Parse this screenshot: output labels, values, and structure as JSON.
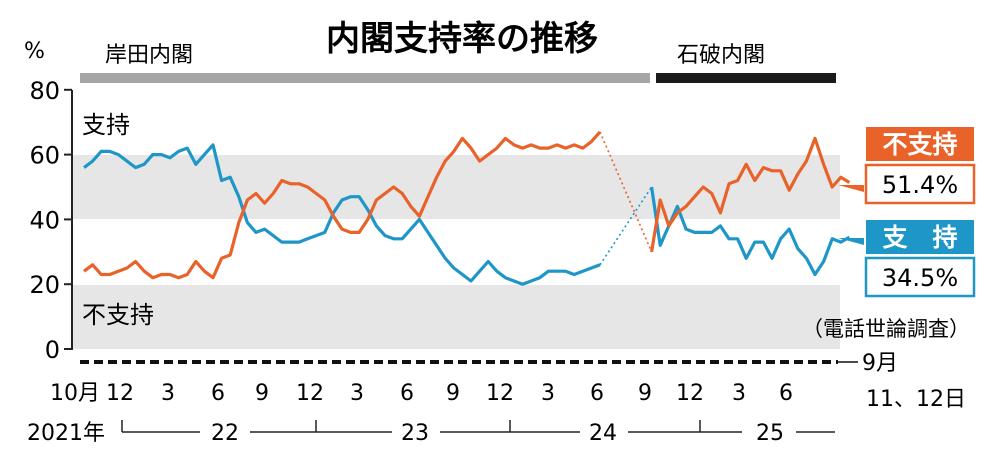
{
  "chart_data": {
    "type": "line",
    "title": "内閣支持率の推移",
    "y_unit": "%",
    "ylim": [
      0,
      80
    ],
    "y_ticks": [
      "0",
      "20",
      "40",
      "60",
      "80"
    ],
    "grid": "horizontal bands",
    "source_note": "（電話世論調査）",
    "cabinets": [
      {
        "name": "岸田内閣",
        "color": "#a6a6a6"
      },
      {
        "name": "石破内閣",
        "color": "#1a1a1a"
      }
    ],
    "x_month_labels": [
      "10月",
      "12",
      "3",
      "6",
      "9",
      "12",
      "3",
      "6",
      "9",
      "12",
      "3",
      "6",
      "9",
      "12",
      "3",
      "6"
    ],
    "x_year_labels": [
      "2021年",
      "22",
      "23",
      "24",
      "25"
    ],
    "last_point_label": {
      "line1": "9月",
      "line2": "11、12日"
    },
    "series": [
      {
        "name": "支持",
        "legend_name": "支　持",
        "inline_label": "支持",
        "color": "#1e96c8",
        "latest": "34.5%",
        "kishida": [
          [
            0,
            56
          ],
          [
            1,
            58
          ],
          [
            2,
            61
          ],
          [
            3,
            61
          ],
          [
            4,
            60
          ],
          [
            5,
            58
          ],
          [
            6,
            56
          ],
          [
            7,
            57
          ],
          [
            8,
            60
          ],
          [
            9,
            60
          ],
          [
            10,
            59
          ],
          [
            11,
            61
          ],
          [
            12,
            62
          ],
          [
            13,
            57
          ],
          [
            14,
            60
          ],
          [
            15,
            63
          ],
          [
            16,
            52
          ],
          [
            17,
            53
          ],
          [
            18,
            47
          ],
          [
            19,
            39
          ],
          [
            20,
            36
          ],
          [
            21,
            37
          ],
          [
            22,
            35
          ],
          [
            23,
            33
          ],
          [
            24,
            33
          ],
          [
            25,
            33
          ],
          [
            26,
            34
          ],
          [
            27,
            35
          ],
          [
            28,
            36
          ],
          [
            29,
            42
          ],
          [
            30,
            46
          ],
          [
            31,
            47
          ],
          [
            32,
            47
          ],
          [
            33,
            43
          ],
          [
            34,
            38
          ],
          [
            35,
            35
          ],
          [
            36,
            34
          ],
          [
            37,
            34
          ],
          [
            38,
            37
          ],
          [
            39,
            40
          ],
          [
            40,
            36
          ],
          [
            41,
            32
          ],
          [
            42,
            28
          ],
          [
            43,
            25
          ],
          [
            44,
            23
          ],
          [
            45,
            21
          ],
          [
            46,
            24
          ],
          [
            47,
            27
          ],
          [
            48,
            24
          ],
          [
            49,
            22
          ],
          [
            50,
            21
          ],
          [
            51,
            20
          ],
          [
            52,
            21
          ],
          [
            53,
            22
          ],
          [
            54,
            24
          ],
          [
            55,
            24
          ],
          [
            56,
            24
          ],
          [
            57,
            23
          ],
          [
            58,
            24
          ],
          [
            59,
            25
          ],
          [
            60,
            26
          ]
        ],
        "ishiba": [
          [
            66,
            50
          ],
          [
            67,
            32
          ],
          [
            68,
            38
          ],
          [
            69,
            44
          ],
          [
            70,
            37
          ],
          [
            71,
            36
          ],
          [
            72,
            36
          ],
          [
            73,
            36
          ],
          [
            74,
            38
          ],
          [
            75,
            34
          ],
          [
            76,
            34
          ],
          [
            77,
            28
          ],
          [
            78,
            33
          ],
          [
            79,
            33
          ],
          [
            80,
            28
          ],
          [
            81,
            34
          ],
          [
            82,
            37
          ],
          [
            83,
            31
          ],
          [
            84,
            28
          ],
          [
            85,
            23
          ],
          [
            86,
            27
          ],
          [
            87,
            34
          ],
          [
            88,
            33
          ],
          [
            89,
            34.5
          ]
        ]
      },
      {
        "name": "不支持",
        "legend_name": "不支持",
        "inline_label": "不支持",
        "color": "#e8622a",
        "latest": "51.4%",
        "kishida": [
          [
            0,
            24
          ],
          [
            1,
            26
          ],
          [
            2,
            23
          ],
          [
            3,
            23
          ],
          [
            4,
            24
          ],
          [
            5,
            25
          ],
          [
            6,
            27
          ],
          [
            7,
            24
          ],
          [
            8,
            22
          ],
          [
            9,
            23
          ],
          [
            10,
            23
          ],
          [
            11,
            22
          ],
          [
            12,
            23
          ],
          [
            13,
            27
          ],
          [
            14,
            24
          ],
          [
            15,
            22
          ],
          [
            16,
            28
          ],
          [
            17,
            29
          ],
          [
            18,
            39
          ],
          [
            19,
            46
          ],
          [
            20,
            48
          ],
          [
            21,
            45
          ],
          [
            22,
            48
          ],
          [
            23,
            52
          ],
          [
            24,
            51
          ],
          [
            25,
            51
          ],
          [
            26,
            50
          ],
          [
            27,
            48
          ],
          [
            28,
            46
          ],
          [
            29,
            41
          ],
          [
            30,
            37
          ],
          [
            31,
            36
          ],
          [
            32,
            36
          ],
          [
            33,
            40
          ],
          [
            34,
            46
          ],
          [
            35,
            48
          ],
          [
            36,
            50
          ],
          [
            37,
            48
          ],
          [
            38,
            44
          ],
          [
            39,
            41
          ],
          [
            40,
            47
          ],
          [
            41,
            53
          ],
          [
            42,
            58
          ],
          [
            43,
            61
          ],
          [
            44,
            65
          ],
          [
            45,
            62
          ],
          [
            46,
            58
          ],
          [
            47,
            60
          ],
          [
            48,
            62
          ],
          [
            49,
            65
          ],
          [
            50,
            63
          ],
          [
            51,
            62
          ],
          [
            52,
            63
          ],
          [
            53,
            62
          ],
          [
            54,
            62
          ],
          [
            55,
            63
          ],
          [
            56,
            62
          ],
          [
            57,
            63
          ],
          [
            58,
            62
          ],
          [
            59,
            64
          ],
          [
            60,
            67
          ]
        ],
        "ishiba": [
          [
            66,
            30
          ],
          [
            67,
            46
          ],
          [
            68,
            38
          ],
          [
            69,
            42
          ],
          [
            70,
            44
          ],
          [
            71,
            47
          ],
          [
            72,
            50
          ],
          [
            73,
            48
          ],
          [
            74,
            42
          ],
          [
            75,
            51
          ],
          [
            76,
            52
          ],
          [
            77,
            57
          ],
          [
            78,
            52
          ],
          [
            79,
            56
          ],
          [
            80,
            55
          ],
          [
            81,
            55
          ],
          [
            82,
            49
          ],
          [
            83,
            54
          ],
          [
            84,
            58
          ],
          [
            85,
            65
          ],
          [
            86,
            57
          ],
          [
            87,
            50
          ],
          [
            88,
            53
          ],
          [
            89,
            51.4
          ]
        ]
      }
    ]
  }
}
